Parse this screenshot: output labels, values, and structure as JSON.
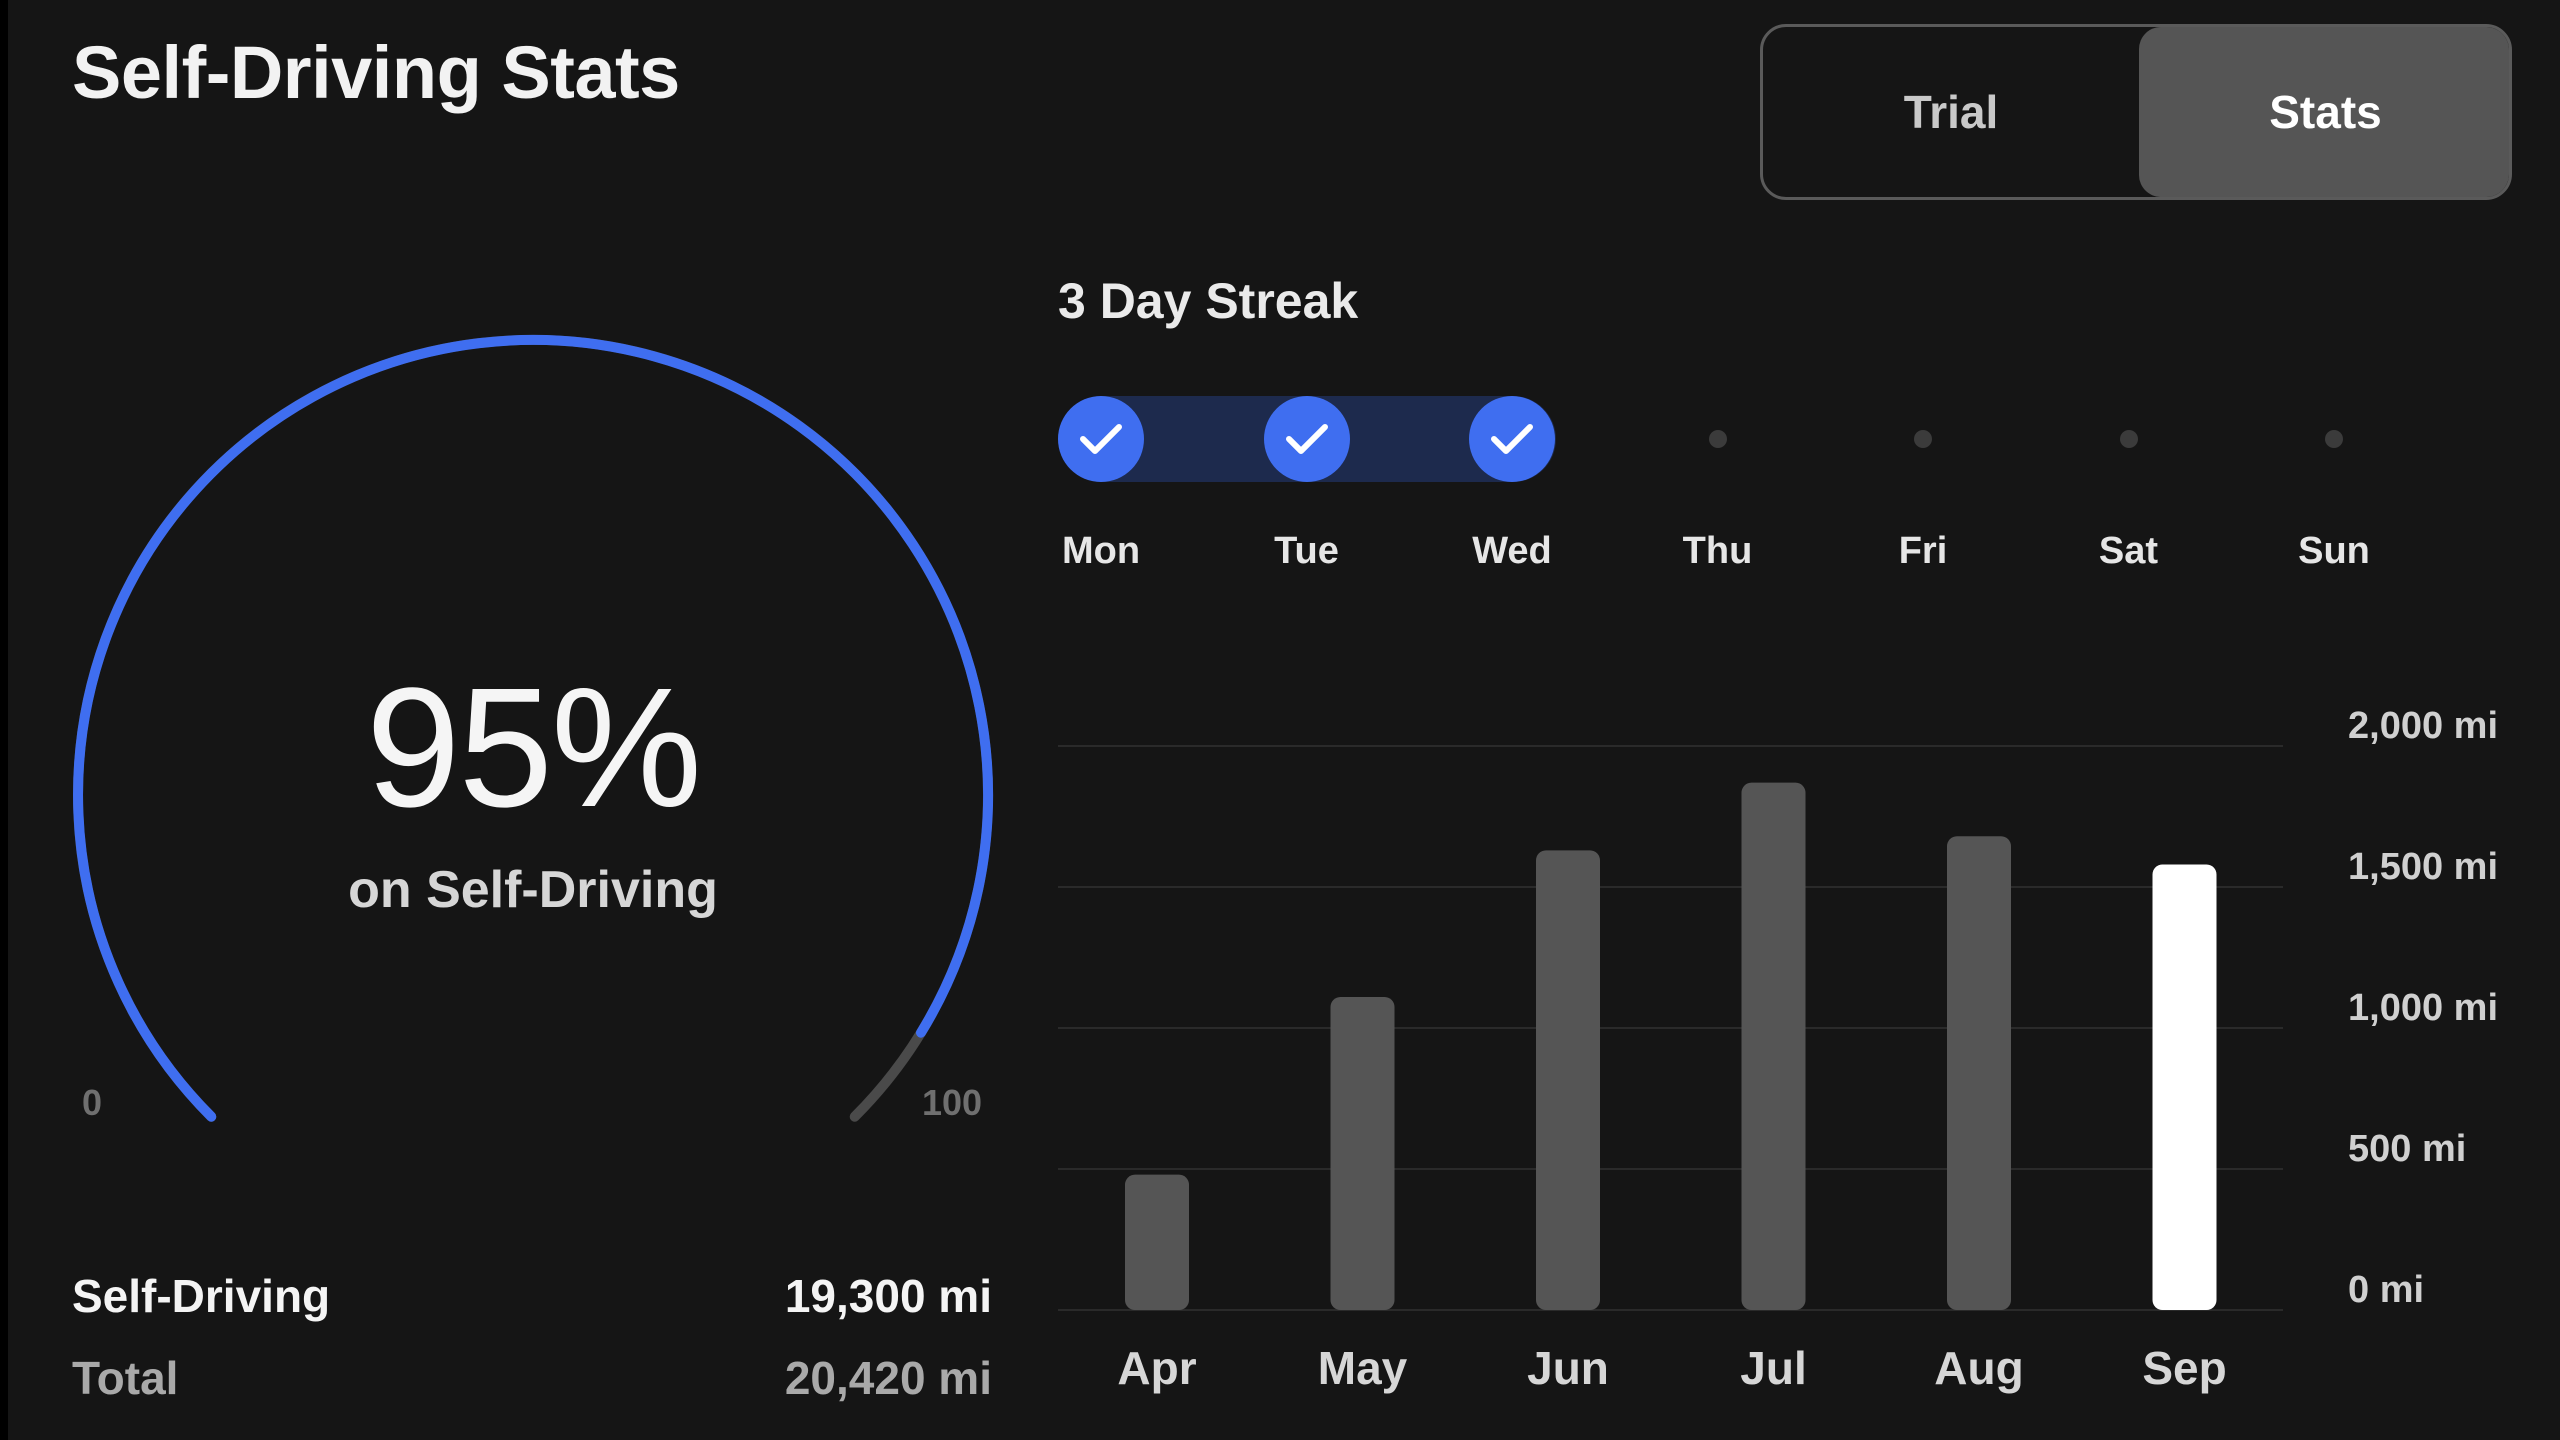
{
  "header": {
    "title": "Self-Driving Stats"
  },
  "toggle": {
    "options": [
      "Trial",
      "Stats"
    ],
    "selected": "Stats"
  },
  "gauge": {
    "value_label": "95%",
    "value": 95,
    "caption": "on Self-Driving",
    "min_label": "0",
    "max_label": "100",
    "accent": "#3f6ef0",
    "track_color": "#4a4a4a"
  },
  "summary": {
    "self_driving_label": "Self-Driving",
    "self_driving_value": "19,300 mi",
    "total_label": "Total",
    "total_value": "20,420 mi"
  },
  "streak": {
    "title": "3 Day Streak",
    "days": [
      {
        "label": "Mon",
        "done": true
      },
      {
        "label": "Tue",
        "done": true
      },
      {
        "label": "Wed",
        "done": true
      },
      {
        "label": "Thu",
        "done": false
      },
      {
        "label": "Fri",
        "done": false
      },
      {
        "label": "Sat",
        "done": false
      },
      {
        "label": "Sun",
        "done": false
      }
    ],
    "check_icon": "check-icon"
  },
  "chart_data": {
    "type": "bar",
    "categories": [
      "Apr",
      "May",
      "Jun",
      "Jul",
      "Aug",
      "Sep"
    ],
    "values": [
      480,
      1110,
      1630,
      1870,
      1680,
      1580
    ],
    "highlight_index": 5,
    "ylim": [
      0,
      2000
    ],
    "yticks": [
      0,
      500,
      1000,
      1500,
      2000
    ],
    "ytick_labels": [
      "0 mi",
      "500 mi",
      "1,000 mi",
      "1,500 mi",
      "2,000 mi"
    ],
    "grid": true,
    "bar_color": "#555555",
    "highlight_color": "#ffffff"
  }
}
